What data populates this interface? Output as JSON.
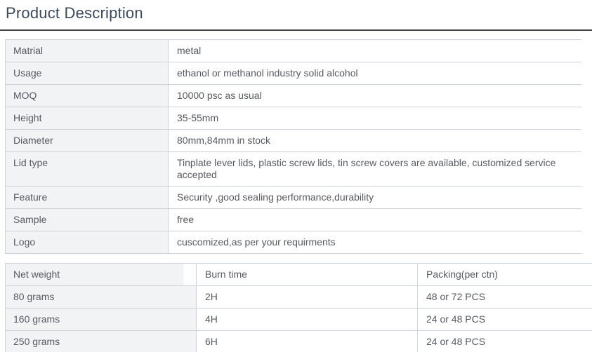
{
  "page": {
    "title": "Product Description"
  },
  "colors": {
    "title_text": "#3d4a5a",
    "title_rule": "#43474d",
    "table_border": "#ccd2d8",
    "label_cell_bg": "#f2f3f5",
    "cell_text": "#565a5f",
    "page_bg": "#ffffff"
  },
  "spec_table": {
    "rows": [
      {
        "label": "Matrial",
        "value": "metal"
      },
      {
        "label": "Usage",
        "value": "ethanol or methanol industry solid alcohol"
      },
      {
        "label": "MOQ",
        "value": "10000 psc as usual"
      },
      {
        "label": "Height",
        "value": "35-55mm"
      },
      {
        "label": "Diameter",
        "value": "80mm,84mm in stock"
      },
      {
        "label": "Lid type",
        "value": "Tinplate lever lids, plastic screw lids, tin screw covers are available, customized service accepted"
      },
      {
        "label": "Feature",
        "value": "Security ,good sealing performance,durability"
      },
      {
        "label": "Sample",
        "value": "free"
      },
      {
        "label": "Logo",
        "value": "cuscomized,as per your requirments"
      }
    ]
  },
  "packing_table": {
    "headers": [
      "Net weight",
      "Burn time",
      "Packing(per ctn)"
    ],
    "rows": [
      [
        "80 grams",
        "2H",
        "48 or 72 PCS"
      ],
      [
        "160 grams",
        "4H",
        "24 or 48 PCS"
      ],
      [
        "250 grams",
        "6H",
        "24 or 48 PCS"
      ]
    ]
  }
}
